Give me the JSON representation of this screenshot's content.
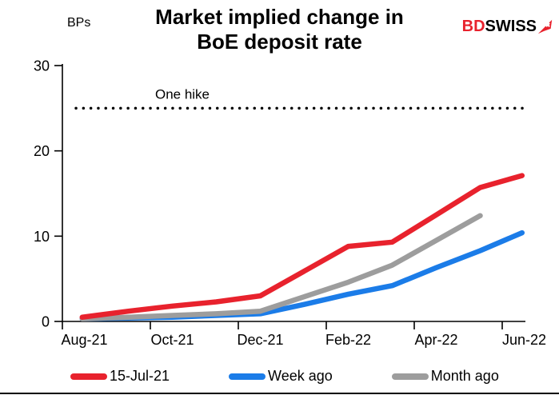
{
  "header": {
    "unit_label": "BPs",
    "title_line1": "Market implied change in",
    "title_line2": "BoE deposit rate"
  },
  "logo": {
    "part1": "BD",
    "part2": "SWISS",
    "primary_color": "#e8222d",
    "secondary_color": "#000000"
  },
  "chart_data": {
    "type": "line",
    "title": "Market implied change in BoE deposit rate",
    "ylabel": "BPs",
    "ylim": [
      0,
      30
    ],
    "y_ticks": [
      0,
      10,
      20,
      30
    ],
    "grid": false,
    "legend_position": "bottom",
    "x_ticks": [
      {
        "label": "Aug-21",
        "pos": 0
      },
      {
        "label": "Oct-21",
        "pos": 2
      },
      {
        "label": "Dec-21",
        "pos": 4
      },
      {
        "label": "Feb-22",
        "pos": 6
      },
      {
        "label": "Apr-22",
        "pos": 8
      },
      {
        "label": "Jun-22",
        "pos": 10
      }
    ],
    "reference_line": {
      "value": 25,
      "label": "One hike",
      "style": "dotted",
      "color": "#000000"
    },
    "series": [
      {
        "name": "Week ago",
        "color": "#1b7ce8",
        "x": [
          0.45,
          1.5,
          2.5,
          3.5,
          4.5,
          5.5,
          6.5,
          7.5,
          8.5,
          9.5,
          10.45
        ],
        "values": [
          0.3,
          0.4,
          0.5,
          0.7,
          0.9,
          2.0,
          3.2,
          4.2,
          6.3,
          8.3,
          10.4
        ]
      },
      {
        "name": "Month ago",
        "color": "#9d9d9d",
        "x": [
          0.45,
          1.5,
          2.5,
          3.5,
          4.5,
          5.5,
          6.5,
          7.5,
          8.5,
          9.5
        ],
        "values": [
          0.3,
          0.5,
          0.7,
          0.9,
          1.2,
          2.9,
          4.6,
          6.6,
          9.5,
          12.4
        ]
      },
      {
        "name": "15-Jul-21",
        "color": "#e8222d",
        "x": [
          0.45,
          1.5,
          2.5,
          3.5,
          4.5,
          5.5,
          6.5,
          7.5,
          8.5,
          9.5,
          10.45
        ],
        "values": [
          0.5,
          1.2,
          1.8,
          2.3,
          3.0,
          5.9,
          8.8,
          9.3,
          12.5,
          15.7,
          17.1
        ]
      }
    ],
    "legend_order": [
      "15-Jul-21",
      "Week ago",
      "Month ago"
    ]
  }
}
